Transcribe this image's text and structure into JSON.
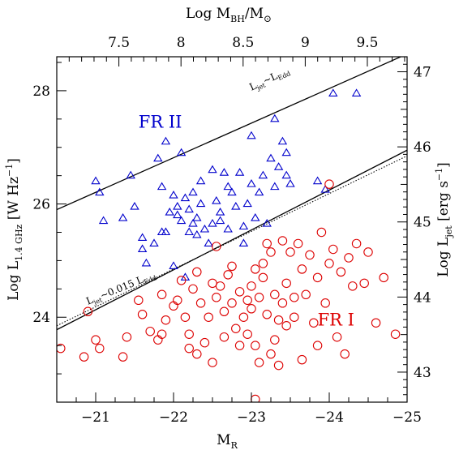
{
  "chart_data": {
    "type": "scatter",
    "xlabel": "M",
    "xlabel_sub": "R",
    "xlim": [
      -20.5,
      -25
    ],
    "ylim": [
      22.5,
      28.6
    ],
    "x_ticks": [
      -21,
      -22,
      -23,
      -24,
      -25
    ],
    "x_tick_labels": [
      "−21",
      "−22",
      "−23",
      "−24",
      "−25"
    ],
    "y_ticks": [
      24,
      26,
      28
    ],
    "y_tick_labels": [
      "24",
      "26",
      "28"
    ],
    "ylabel": {
      "pre": "Log L",
      "sub": "1.4 GHz",
      "post": " [W Hz",
      "sup": "−1",
      "end": "]"
    },
    "top_axis": {
      "label": {
        "pre": "Log M",
        "sub": "BH",
        "mid": "/M",
        "sub2": "⊙"
      },
      "ticks": [
        7.5,
        8,
        8.5,
        9,
        9.5
      ],
      "tick_labels": [
        "7.5",
        "8",
        "8.5",
        "9",
        "9.5"
      ],
      "logmbh_at_xmin": 7.0,
      "logmbh_at_xmax": 9.82
    },
    "right_axis": {
      "label": {
        "pre": "Log L",
        "sub": "jet",
        "post": " [erg s",
        "sup": "−1",
        "end": "]"
      },
      "ticks": [
        43,
        44,
        45,
        46,
        47
      ],
      "tick_labels": [
        "43",
        "44",
        "45",
        "46",
        "47"
      ],
      "value_at_ymin": 42.6,
      "value_at_ymax": 47.2
    },
    "lines": [
      {
        "name": "ljet_ledd",
        "style": "solid",
        "x": [
          -20.5,
          -25
        ],
        "y": [
          25.9,
          28.65
        ]
      },
      {
        "name": "ljet_0015_ledd",
        "style": "solid",
        "x": [
          -20.5,
          -25
        ],
        "y": [
          23.78,
          26.95
        ]
      },
      {
        "name": "dotted",
        "style": "dotted",
        "x": [
          -20.5,
          -25
        ],
        "y": [
          23.85,
          26.85
        ]
      }
    ],
    "annotations": [
      {
        "id": "ljet-ledd-label",
        "pre": "L",
        "sub": "jet",
        "mid": "~L",
        "sub2": "Edd",
        "x": -23.0,
        "y": 28.0,
        "rotate": -25
      },
      {
        "id": "ljet-0015-label",
        "pre": "L",
        "sub": "jet",
        "mid": "~0.015 L",
        "sub2": "Edd",
        "x": -20.9,
        "y": 24.22,
        "rotate": -22
      }
    ],
    "region_labels": [
      {
        "text": "FR II",
        "x": -21.55,
        "y": 27.35,
        "color": "#0000cc"
      },
      {
        "text": "FR I",
        "x": -23.85,
        "y": 23.85,
        "color": "#dd0000"
      }
    ],
    "series": [
      {
        "name": "FR II",
        "marker": "triangle",
        "color": "#0000cc",
        "points": [
          [
            -21.0,
            26.4
          ],
          [
            -21.05,
            26.2
          ],
          [
            -21.1,
            25.7
          ],
          [
            -21.35,
            25.75
          ],
          [
            -21.45,
            26.5
          ],
          [
            -21.5,
            25.95
          ],
          [
            -21.6,
            25.4
          ],
          [
            -21.6,
            25.2
          ],
          [
            -21.65,
            24.95
          ],
          [
            -21.75,
            25.3
          ],
          [
            -21.8,
            26.8
          ],
          [
            -21.85,
            26.3
          ],
          [
            -21.85,
            25.5
          ],
          [
            -21.9,
            25.5
          ],
          [
            -21.9,
            27.1
          ],
          [
            -21.95,
            25.85
          ],
          [
            -22.0,
            26.15
          ],
          [
            -22.0,
            24.9
          ],
          [
            -22.05,
            25.95
          ],
          [
            -22.05,
            25.8
          ],
          [
            -22.1,
            26.9
          ],
          [
            -22.1,
            25.7
          ],
          [
            -22.15,
            26.1
          ],
          [
            -22.2,
            25.9
          ],
          [
            -22.2,
            25.5
          ],
          [
            -22.25,
            26.2
          ],
          [
            -22.25,
            25.65
          ],
          [
            -22.3,
            25.45
          ],
          [
            -22.3,
            25.75
          ],
          [
            -22.35,
            26.0
          ],
          [
            -22.35,
            26.4
          ],
          [
            -22.4,
            25.55
          ],
          [
            -22.45,
            25.3
          ],
          [
            -22.5,
            26.6
          ],
          [
            -22.5,
            25.65
          ],
          [
            -22.55,
            26.05
          ],
          [
            -22.6,
            25.85
          ],
          [
            -22.65,
            26.55
          ],
          [
            -22.7,
            26.3
          ],
          [
            -22.7,
            25.55
          ],
          [
            -22.75,
            26.2
          ],
          [
            -22.8,
            25.95
          ],
          [
            -22.85,
            26.55
          ],
          [
            -22.9,
            25.6
          ],
          [
            -22.95,
            26.0
          ],
          [
            -23.0,
            26.35
          ],
          [
            -23.0,
            27.2
          ],
          [
            -23.05,
            25.75
          ],
          [
            -23.1,
            26.2
          ],
          [
            -23.15,
            26.5
          ],
          [
            -23.2,
            25.65
          ],
          [
            -23.25,
            26.8
          ],
          [
            -23.3,
            26.3
          ],
          [
            -23.3,
            27.5
          ],
          [
            -23.35,
            26.65
          ],
          [
            -23.4,
            27.1
          ],
          [
            -23.45,
            26.9
          ],
          [
            -23.45,
            26.5
          ],
          [
            -23.5,
            26.35
          ],
          [
            -23.85,
            26.4
          ],
          [
            -23.95,
            26.25
          ],
          [
            -24.05,
            27.95
          ],
          [
            -24.35,
            27.95
          ],
          [
            -22.9,
            25.3
          ],
          [
            -22.6,
            25.7
          ],
          [
            -22.15,
            24.7
          ]
        ]
      },
      {
        "name": "FR I",
        "marker": "circle",
        "color": "#dd0000",
        "points": [
          [
            -20.55,
            23.45
          ],
          [
            -20.85,
            23.3
          ],
          [
            -20.9,
            24.1
          ],
          [
            -21.0,
            23.6
          ],
          [
            -21.05,
            23.45
          ],
          [
            -21.35,
            23.3
          ],
          [
            -21.4,
            23.65
          ],
          [
            -21.55,
            24.3
          ],
          [
            -21.6,
            24.05
          ],
          [
            -21.7,
            23.75
          ],
          [
            -21.8,
            23.6
          ],
          [
            -21.85,
            24.4
          ],
          [
            -21.85,
            23.7
          ],
          [
            -21.9,
            23.95
          ],
          [
            -22.0,
            24.2
          ],
          [
            -22.1,
            24.65
          ],
          [
            -22.15,
            24.0
          ],
          [
            -22.2,
            23.7
          ],
          [
            -22.25,
            24.5
          ],
          [
            -22.3,
            23.35
          ],
          [
            -22.3,
            24.8
          ],
          [
            -22.35,
            24.25
          ],
          [
            -22.4,
            23.55
          ],
          [
            -22.45,
            24.0
          ],
          [
            -22.5,
            24.6
          ],
          [
            -22.5,
            23.2
          ],
          [
            -22.55,
            24.35
          ],
          [
            -22.6,
            24.55
          ],
          [
            -22.65,
            23.65
          ],
          [
            -22.65,
            24.1
          ],
          [
            -22.7,
            24.75
          ],
          [
            -22.75,
            24.25
          ],
          [
            -22.8,
            23.8
          ],
          [
            -22.85,
            24.45
          ],
          [
            -22.9,
            24.0
          ],
          [
            -22.95,
            23.7
          ],
          [
            -23.0,
            24.55
          ],
          [
            -23.0,
            24.15
          ],
          [
            -23.05,
            23.5
          ],
          [
            -23.05,
            24.85
          ],
          [
            -23.1,
            24.35
          ],
          [
            -23.1,
            23.2
          ],
          [
            -23.15,
            24.7
          ],
          [
            -23.15,
            24.95
          ],
          [
            -23.2,
            25.3
          ],
          [
            -23.2,
            24.05
          ],
          [
            -23.25,
            25.15
          ],
          [
            -23.3,
            23.6
          ],
          [
            -23.3,
            24.4
          ],
          [
            -23.35,
            23.15
          ],
          [
            -23.4,
            24.25
          ],
          [
            -23.4,
            25.35
          ],
          [
            -23.45,
            24.6
          ],
          [
            -23.45,
            23.85
          ],
          [
            -23.5,
            25.15
          ],
          [
            -23.55,
            24.0
          ],
          [
            -23.6,
            25.3
          ],
          [
            -23.65,
            24.85
          ],
          [
            -23.7,
            24.4
          ],
          [
            -23.75,
            25.1
          ],
          [
            -23.8,
            23.9
          ],
          [
            -23.85,
            23.5
          ],
          [
            -23.85,
            24.7
          ],
          [
            -23.9,
            25.5
          ],
          [
            -23.95,
            24.25
          ],
          [
            -24.0,
            26.35
          ],
          [
            -24.0,
            24.95
          ],
          [
            -24.05,
            25.2
          ],
          [
            -24.1,
            23.65
          ],
          [
            -24.15,
            24.8
          ],
          [
            -24.2,
            23.35
          ],
          [
            -24.25,
            25.05
          ],
          [
            -24.3,
            24.55
          ],
          [
            -24.35,
            25.3
          ],
          [
            -24.45,
            24.6
          ],
          [
            -24.5,
            25.15
          ],
          [
            -24.6,
            23.9
          ],
          [
            -24.7,
            24.7
          ],
          [
            -24.85,
            23.7
          ],
          [
            -22.05,
            24.3
          ],
          [
            -22.2,
            23.45
          ],
          [
            -22.55,
            25.25
          ],
          [
            -22.75,
            24.9
          ],
          [
            -22.95,
            24.3
          ],
          [
            -23.05,
            22.55
          ],
          [
            -23.25,
            23.35
          ],
          [
            -23.55,
            24.35
          ],
          [
            -23.65,
            23.25
          ],
          [
            -23.35,
            23.95
          ],
          [
            -22.85,
            23.5
          ]
        ]
      }
    ]
  }
}
